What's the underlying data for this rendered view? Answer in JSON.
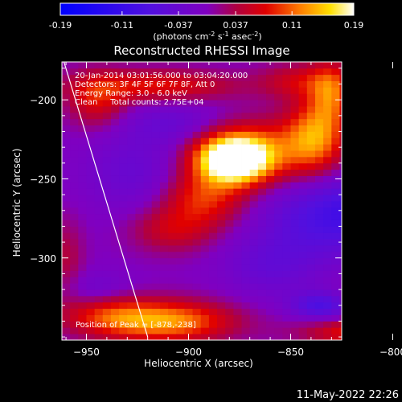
{
  "colorbar": {
    "ticks": [
      "-0.19",
      "-0.11",
      "-0.037",
      "0.037",
      "0.11",
      "0.19"
    ],
    "label_base": "(photons cm",
    "label_exp1": "-2",
    "label_mid1": " s",
    "label_exp2": "-1",
    "label_mid2": " asec",
    "label_exp3": "-2",
    "label_end": ")"
  },
  "colors": {
    "background": "#000000",
    "text": "#ffffff",
    "min": "#0000ff",
    "mid": "#8000c0",
    "max": "#ffffff"
  },
  "chart_data": {
    "type": "heatmap",
    "title": "Reconstructed RHESSI Image",
    "xlabel": "Heliocentric X (arcsec)",
    "ylabel": "Heliocentric Y (arcsec)",
    "xlim": [
      -962,
      -825
    ],
    "ylim": [
      -352,
      -176
    ],
    "x_ticks": [
      -950,
      -900,
      -850,
      -800
    ],
    "x_tick_labels": [
      "−950",
      "−900",
      "−850",
      "−800"
    ],
    "y_ticks": [
      -200,
      -250,
      -300
    ],
    "y_tick_labels": [
      "−200",
      "−250",
      "−300"
    ],
    "color_range": [
      -0.19,
      0.19
    ],
    "peak": [
      -878,
      -238
    ],
    "annotations": [
      "20-Jan-2014 03:01:56.000 to 03:04:20.000",
      "Detectors: 3F 4F 5F 6F 7F 8F, Att 0",
      "Energy Range: 3.0 - 6.0 keV",
      "Clean     Total counts: 2.75E+04"
    ],
    "peak_label": "Position of Peak = [-878,-238]",
    "limb_line": [
      [
        -961,
        -176
      ],
      [
        -920,
        -350
      ]
    ],
    "features": [
      {
        "x": -878,
        "y": -238,
        "sx": 12,
        "sy": 10,
        "amp": 0.22
      },
      {
        "x": -868,
        "y": -232,
        "sx": 22,
        "sy": 14,
        "amp": 0.1
      },
      {
        "x": -893,
        "y": -262,
        "sx": 14,
        "sy": 12,
        "amp": 0.09
      },
      {
        "x": -908,
        "y": -282,
        "sx": 14,
        "sy": 10,
        "amp": 0.06
      },
      {
        "x": -838,
        "y": -222,
        "sx": 10,
        "sy": 16,
        "amp": 0.11
      },
      {
        "x": -830,
        "y": -196,
        "sx": 7,
        "sy": 14,
        "amp": 0.09
      },
      {
        "x": -845,
        "y": -188,
        "sx": 14,
        "sy": 8,
        "amp": 0.06
      },
      {
        "x": -915,
        "y": -191,
        "sx": 26,
        "sy": 7,
        "amp": 0.08
      },
      {
        "x": -945,
        "y": -200,
        "sx": 10,
        "sy": 12,
        "amp": 0.07
      },
      {
        "x": -910,
        "y": -340,
        "sx": 22,
        "sy": 9,
        "amp": 0.13
      },
      {
        "x": -940,
        "y": -336,
        "sx": 16,
        "sy": 9,
        "amp": 0.07
      },
      {
        "x": -810,
        "y": -347,
        "sx": 22,
        "sy": 6,
        "amp": 0.1
      },
      {
        "x": -805,
        "y": -325,
        "sx": 12,
        "sy": 8,
        "amp": 0.05
      },
      {
        "x": -960,
        "y": -300,
        "sx": 6,
        "sy": 18,
        "amp": 0.04
      },
      {
        "x": -905,
        "y": -215,
        "sx": 18,
        "sy": 10,
        "amp": -0.04
      },
      {
        "x": -925,
        "y": -245,
        "sx": 18,
        "sy": 18,
        "amp": -0.04
      },
      {
        "x": -835,
        "y": -275,
        "sx": 20,
        "sy": 18,
        "amp": -0.07
      },
      {
        "x": -810,
        "y": -268,
        "sx": 16,
        "sy": 14,
        "amp": -0.06
      },
      {
        "x": -860,
        "y": -305,
        "sx": 16,
        "sy": 14,
        "amp": -0.04
      },
      {
        "x": -945,
        "y": -320,
        "sx": 12,
        "sy": 8,
        "amp": -0.03
      },
      {
        "x": -835,
        "y": -330,
        "sx": 10,
        "sy": 6,
        "amp": -0.08
      }
    ]
  },
  "footer": {
    "timestamp": "11-May-2022 22:26"
  }
}
